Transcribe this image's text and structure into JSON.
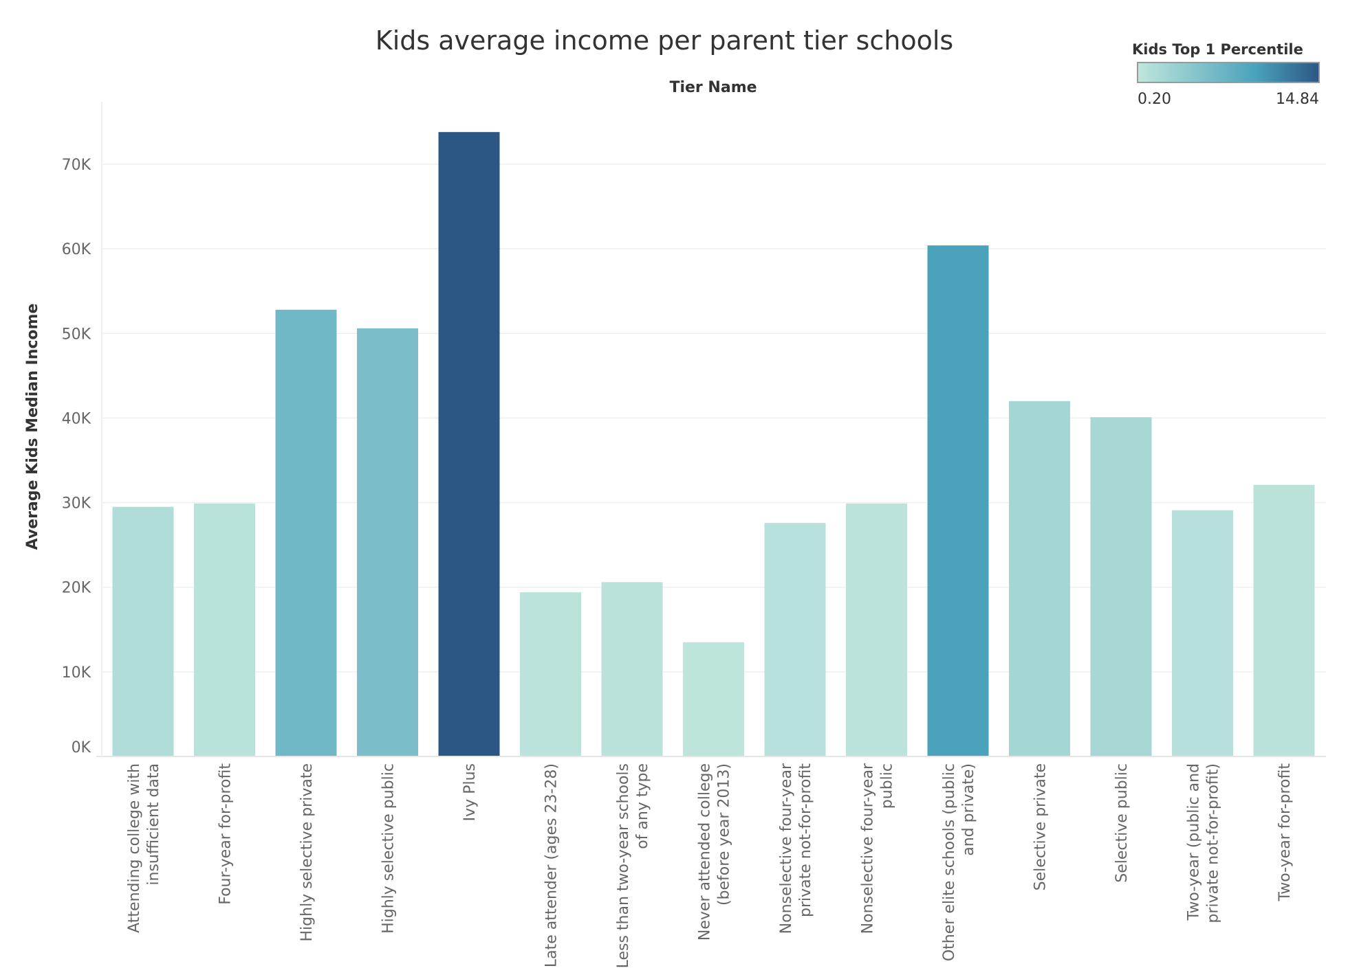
{
  "chart_data": {
    "type": "bar",
    "title": "Kids average income per parent tier schools",
    "column_header": "Tier Name",
    "ylabel": "Average Kids Median Income",
    "ylim": [
      0,
      70000
    ],
    "yticks": [
      0,
      10000,
      20000,
      30000,
      40000,
      50000,
      60000,
      70000
    ],
    "ytick_labels": [
      "0K",
      "10K",
      "20K",
      "30K",
      "40K",
      "50K",
      "60K",
      "70K"
    ],
    "grid": "horizontal",
    "color_legend": {
      "title": "Kids Top 1 Percentile",
      "min_label": "0.20",
      "max_label": "14.84",
      "min": 0.2,
      "max": 14.84,
      "colors": [
        "#c0e6dc",
        "#4aa2bb",
        "#2c5784"
      ],
      "placement": "top-right"
    },
    "categories": [
      [
        "Attending college with",
        "insufficient data"
      ],
      [
        "Four-year for-profit"
      ],
      [
        "Highly selective private"
      ],
      [
        "Highly selective public"
      ],
      [
        "Ivy Plus"
      ],
      [
        "Late attender (ages 23-28)"
      ],
      [
        "Less than two-year schools",
        "of any type"
      ],
      [
        "Never attended college",
        "(before year 2013)"
      ],
      [
        "Nonselective four-year",
        "private not-for-profit"
      ],
      [
        "Nonselective four-year",
        "public"
      ],
      [
        "Other elite schools (public",
        "and private)"
      ],
      [
        "Selective private"
      ],
      [
        "Selective public"
      ],
      [
        "Two-year (public and",
        "private not-for-profit)"
      ],
      [
        "Two-year for-profit"
      ]
    ],
    "values": [
      29500,
      29900,
      52800,
      50600,
      73800,
      19400,
      20600,
      13500,
      27600,
      29900,
      60400,
      42000,
      40100,
      29100,
      32100
    ],
    "color_values": [
      1.4,
      0.8,
      6.6,
      5.8,
      14.84,
      0.6,
      0.7,
      0.4,
      0.9,
      0.6,
      9.6,
      2.5,
      2.3,
      1.0,
      0.7
    ]
  }
}
